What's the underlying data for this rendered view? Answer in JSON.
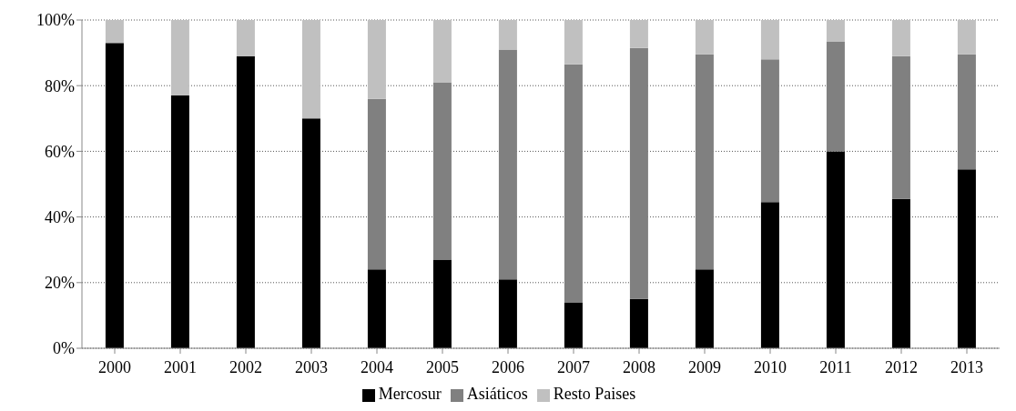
{
  "chart_data": {
    "type": "bar",
    "stacked": true,
    "categories": [
      "2000",
      "2001",
      "2002",
      "2003",
      "2004",
      "2005",
      "2006",
      "2007",
      "2008",
      "2009",
      "2010",
      "2011",
      "2012",
      "2013"
    ],
    "series": [
      {
        "name": "Mercosur",
        "color": "#000000",
        "values": [
          93,
          77,
          89,
          70,
          24,
          27,
          21,
          14,
          15,
          24,
          44.5,
          60,
          45.5,
          54.5
        ]
      },
      {
        "name": "Asiáticos",
        "color": "#808080",
        "values": [
          0,
          0,
          0,
          0,
          52,
          54,
          70,
          72.5,
          76.5,
          65.5,
          43.5,
          33.5,
          43.5,
          35
        ]
      },
      {
        "name": "Resto Paises",
        "color": "#c0c0c0",
        "values": [
          7,
          23,
          11,
          30,
          24,
          19,
          9,
          13.5,
          8.5,
          10.5,
          12,
          6.5,
          11,
          10.5
        ]
      }
    ],
    "ylim": [
      0,
      100
    ],
    "yticks": [
      {
        "value": 0,
        "label": "0%"
      },
      {
        "value": 20,
        "label": "20%"
      },
      {
        "value": 40,
        "label": "40%"
      },
      {
        "value": 60,
        "label": "60%"
      },
      {
        "value": 80,
        "label": "80%"
      },
      {
        "value": 100,
        "label": "100%"
      }
    ],
    "grid": "y",
    "legend": "bottom"
  }
}
